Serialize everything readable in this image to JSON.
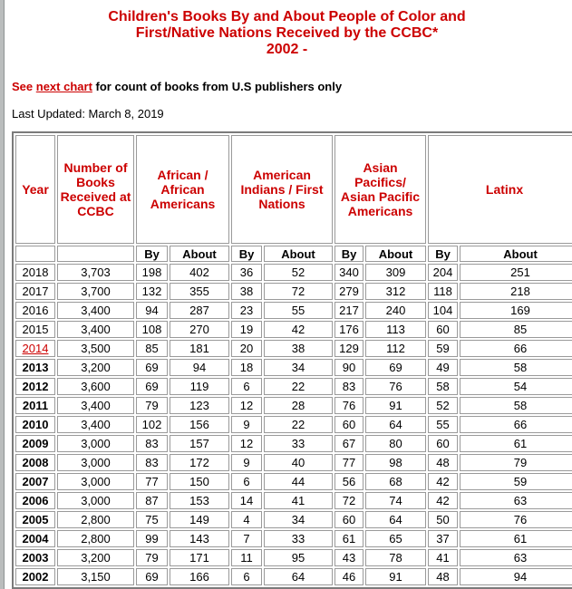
{
  "header": {
    "title_line1": "Children's Books By and About People of Color and",
    "title_line2": "First/Native Nations Received by the CCBC*",
    "title_line3": "2002 -",
    "see_prefix": "See",
    "see_link_label": "next chart",
    "see_suffix": " for count of books from U.S publishers only",
    "last_updated": "Last Updated: March 8, 2019"
  },
  "table": {
    "group_headers": [
      "Year",
      "Number of Books Received at CCBC",
      "African / African Americans",
      "American Indians / First Nations",
      "Asian Pacifics/ Asian Pacific Americans",
      "Latinx"
    ],
    "sub_by": "By",
    "sub_about": "About",
    "rows": [
      {
        "year": "2018",
        "bold": false,
        "link": false,
        "values": [
          "3,703",
          "198",
          "402",
          "36",
          "52",
          "340",
          "309",
          "204",
          "251"
        ]
      },
      {
        "year": "2017",
        "bold": false,
        "link": false,
        "values": [
          "3,700",
          "132",
          "355",
          "38",
          "72",
          "279",
          "312",
          "118",
          "218"
        ]
      },
      {
        "year": "2016",
        "bold": false,
        "link": false,
        "values": [
          "3,400",
          "94",
          "287",
          "23",
          "55",
          "217",
          "240",
          "104",
          "169"
        ]
      },
      {
        "year": "2015",
        "bold": false,
        "link": false,
        "values": [
          "3,400",
          "108",
          "270",
          "19",
          "42",
          "176",
          "113",
          "60",
          "85"
        ]
      },
      {
        "year": "2014",
        "bold": false,
        "link": true,
        "values": [
          "3,500",
          "85",
          "181",
          "20",
          "38",
          "129",
          "112",
          "59",
          "66"
        ]
      },
      {
        "year": "2013",
        "bold": true,
        "link": false,
        "values": [
          "3,200",
          "69",
          "94",
          "18",
          "34",
          "90",
          "69",
          "49",
          "58"
        ]
      },
      {
        "year": "2012",
        "bold": true,
        "link": false,
        "values": [
          "3,600",
          "69",
          "119",
          "6",
          "22",
          "83",
          "76",
          "58",
          "54"
        ]
      },
      {
        "year": "2011",
        "bold": true,
        "link": false,
        "values": [
          "3,400",
          "79",
          "123",
          "12",
          "28",
          "76",
          "91",
          "52",
          "58"
        ]
      },
      {
        "year": "2010",
        "bold": true,
        "link": false,
        "values": [
          "3,400",
          "102",
          "156",
          "9",
          "22",
          "60",
          "64",
          "55",
          "66"
        ]
      },
      {
        "year": "2009",
        "bold": true,
        "link": false,
        "values": [
          "3,000",
          "83",
          "157",
          "12",
          "33",
          "67",
          "80",
          "60",
          "61"
        ]
      },
      {
        "year": "2008",
        "bold": true,
        "link": false,
        "values": [
          "3,000",
          "83",
          "172",
          "9",
          "40",
          "77",
          "98",
          "48",
          "79"
        ]
      },
      {
        "year": "2007",
        "bold": true,
        "link": false,
        "values": [
          "3,000",
          "77",
          "150",
          "6",
          "44",
          "56",
          "68",
          "42",
          "59"
        ]
      },
      {
        "year": "2006",
        "bold": true,
        "link": false,
        "values": [
          "3,000",
          "87",
          "153",
          "14",
          "41",
          "72",
          "74",
          "42",
          "63"
        ]
      },
      {
        "year": "2005",
        "bold": true,
        "link": false,
        "values": [
          "2,800",
          "75",
          "149",
          "4",
          "34",
          "60",
          "64",
          "50",
          "76"
        ]
      },
      {
        "year": "2004",
        "bold": true,
        "link": false,
        "values": [
          "2,800",
          "99",
          "143",
          "7",
          "33",
          "61",
          "65",
          "37",
          "61"
        ]
      },
      {
        "year": "2003",
        "bold": true,
        "link": false,
        "values": [
          "3,200",
          "79",
          "171",
          "11",
          "95",
          "43",
          "78",
          "41",
          "63"
        ]
      },
      {
        "year": "2002",
        "bold": true,
        "link": false,
        "values": [
          "3,150",
          "69",
          "166",
          "6",
          "64",
          "46",
          "91",
          "48",
          "94"
        ]
      }
    ]
  },
  "colors": {
    "accent_red": "#CC0000",
    "table_frame_gray": "#7B7B7B",
    "cell_border_gray": "#9A9A9A",
    "window_edge_gray": "#BABDBD"
  }
}
